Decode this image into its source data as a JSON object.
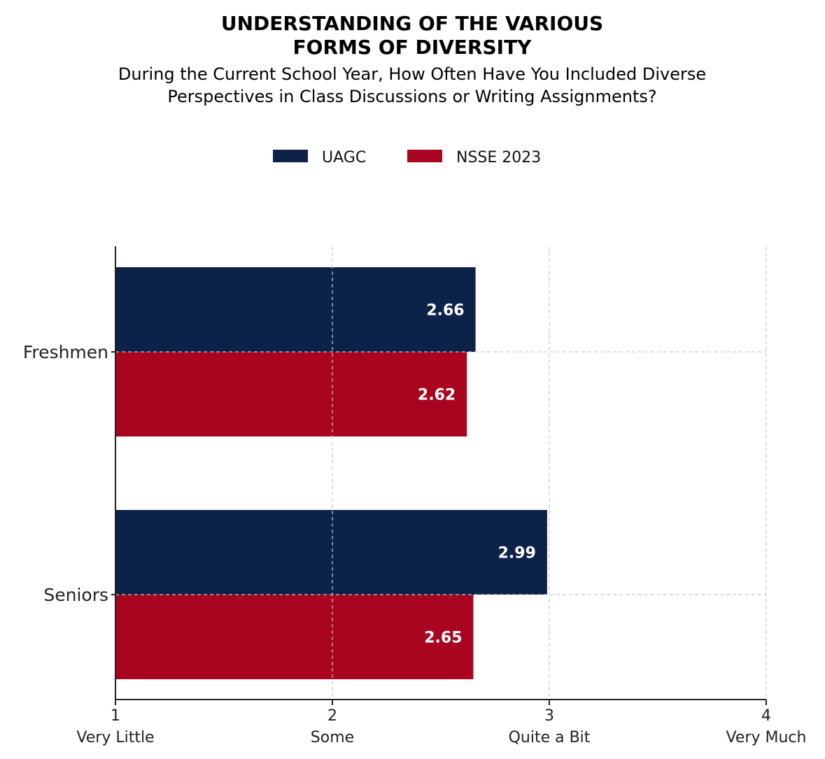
{
  "chart_data": {
    "type": "bar",
    "orientation": "horizontal",
    "title": [
      "UNDERSTANDING OF THE VARIOUS",
      "FORMS OF DIVERSITY"
    ],
    "subtitle": [
      "During the Current School Year, How Often Have You Included Diverse",
      "Perspectives in Class Discussions or Writing Assignments?"
    ],
    "categories": [
      "Freshmen",
      "Seniors"
    ],
    "series": [
      {
        "name": "UAGC",
        "values": [
          2.66,
          2.99
        ],
        "color": "#0c2249"
      },
      {
        "name": "NSSE 2023",
        "values": [
          2.62,
          2.65
        ],
        "color": "#aa0520"
      }
    ],
    "xlim": [
      1,
      4
    ],
    "x_ticks": [
      {
        "value": 1,
        "number": "1",
        "label": "Very Little"
      },
      {
        "value": 2,
        "number": "2",
        "label": "Some"
      },
      {
        "value": 3,
        "number": "3",
        "label": "Quite a Bit"
      },
      {
        "value": 4,
        "number": "4",
        "label": "Very Much"
      }
    ],
    "grid": true,
    "legend": "top-center"
  }
}
